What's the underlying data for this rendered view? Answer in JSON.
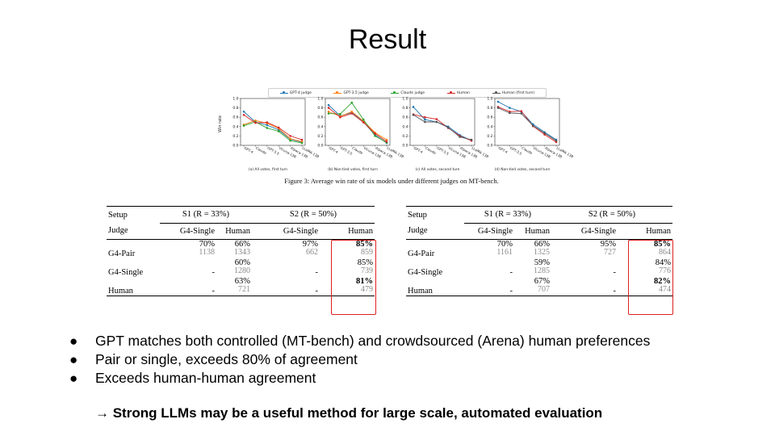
{
  "slide": {
    "title": "Result"
  },
  "figure": {
    "legend": [
      "GPT-4 judge",
      "GPT-3.5 judge",
      "Claude judge",
      "Human",
      "Human (first turn)"
    ],
    "y_axis_label": "Win rate",
    "caption": "Figure 3: Average win rate of six models under different judges on MT-bench.",
    "colors": {
      "gpt4_judge": "#1f77b4",
      "gpt35_judge": "#ff7f0e",
      "claude_judge": "#2ca02c",
      "human": "#d62728",
      "human_first_turn": "#555555"
    }
  },
  "chart_data": [
    {
      "type": "line",
      "caption": "(a) All votes, first turn",
      "categories": [
        "GPT-4",
        "Claude",
        "GPT-3.5",
        "Vicuna-13B",
        "Alpaca-13B",
        "LLaMA-13B"
      ],
      "ylim": [
        0,
        1.0
      ],
      "yticks": [
        "0.0",
        "0.2",
        "0.4",
        "0.6",
        "0.8",
        "1.0"
      ],
      "series": [
        {
          "key": "gpt4_judge",
          "values": [
            0.72,
            0.5,
            0.43,
            0.33,
            0.13,
            0.07
          ]
        },
        {
          "key": "gpt35_judge",
          "values": [
            0.44,
            0.53,
            0.47,
            0.36,
            0.14,
            0.08
          ]
        },
        {
          "key": "claude_judge",
          "values": [
            0.42,
            0.5,
            0.37,
            0.3,
            0.1,
            0.05
          ]
        },
        {
          "key": "human",
          "values": [
            0.65,
            0.48,
            0.49,
            0.38,
            0.2,
            0.12
          ]
        }
      ]
    },
    {
      "type": "line",
      "caption": "(b) Non-tied votes, first turn",
      "categories": [
        "GPT-4",
        "GPT-3.5",
        "Claude",
        "Vicuna-13B",
        "Alpaca-13B",
        "LLaMA-13B"
      ],
      "ylim": [
        0,
        1.0
      ],
      "yticks": [
        "0.0",
        "0.2",
        "0.4",
        "0.6",
        "0.8",
        "1.0"
      ],
      "series": [
        {
          "key": "gpt4_judge",
          "values": [
            0.86,
            0.63,
            0.7,
            0.5,
            0.22,
            0.05
          ]
        },
        {
          "key": "gpt35_judge",
          "values": [
            0.72,
            0.62,
            0.72,
            0.52,
            0.27,
            0.12
          ]
        },
        {
          "key": "claude_judge",
          "values": [
            0.68,
            0.67,
            0.91,
            0.55,
            0.2,
            0.06
          ]
        },
        {
          "key": "human",
          "values": [
            0.8,
            0.6,
            0.68,
            0.49,
            0.25,
            0.08
          ]
        }
      ]
    },
    {
      "type": "line",
      "caption": "(c) All votes, second turn",
      "categories": [
        "GPT-4",
        "Claude",
        "GPT-3.5",
        "Vicuna-13B",
        "Alpaca-13B",
        "LLaMA-13B"
      ],
      "ylim": [
        0,
        1.0
      ],
      "yticks": [
        "0.0",
        "0.2",
        "0.4",
        "0.6",
        "0.8",
        "1.0"
      ],
      "series": [
        {
          "key": "gpt4_judge",
          "values": [
            0.82,
            0.55,
            0.5,
            0.4,
            0.22,
            0.1
          ]
        },
        {
          "key": "human",
          "values": [
            0.66,
            0.6,
            0.56,
            0.37,
            0.2,
            0.1
          ]
        },
        {
          "key": "human_first_turn",
          "values": [
            0.65,
            0.5,
            0.5,
            0.38,
            0.18,
            0.12
          ]
        }
      ]
    },
    {
      "type": "line",
      "caption": "(d) Non-tied votes, second turn",
      "categories": [
        "GPT-4",
        "GPT-3.5",
        "Claude",
        "Vicuna-13B",
        "Alpaca-13B",
        "LLaMA-13B"
      ],
      "ylim": [
        0,
        1.0
      ],
      "yticks": [
        "0.0",
        "0.2",
        "0.4",
        "0.6",
        "0.8",
        "1.0"
      ],
      "series": [
        {
          "key": "gpt4_judge",
          "values": [
            0.93,
            0.8,
            0.72,
            0.45,
            0.28,
            0.12
          ]
        },
        {
          "key": "human",
          "values": [
            0.82,
            0.72,
            0.73,
            0.41,
            0.23,
            0.07
          ]
        },
        {
          "key": "human_first_turn",
          "values": [
            0.8,
            0.69,
            0.68,
            0.42,
            0.26,
            0.1
          ]
        }
      ]
    }
  ],
  "tables": [
    {
      "setup_label": "Setup",
      "s1_label": "S1 (R = 33%)",
      "s2_label": "S2 (R = 50%)",
      "judge_label": "Judge",
      "columns": [
        "G4-Single",
        "Human",
        "G4-Single",
        "Human"
      ],
      "rows": [
        {
          "label": "G4-Pair",
          "cells": [
            [
              "70%",
              "1138"
            ],
            [
              "66%",
              "1343"
            ],
            [
              "97%",
              "662"
            ],
            [
              "85%",
              "859"
            ]
          ]
        },
        {
          "label": "G4-Single",
          "cells": [
            [
              "-",
              ""
            ],
            [
              "60%",
              "1280"
            ],
            [
              "-",
              ""
            ],
            [
              "85%",
              "739"
            ]
          ]
        },
        {
          "label": "Human",
          "cells": [
            [
              "-",
              ""
            ],
            [
              "63%",
              "721"
            ],
            [
              "-",
              ""
            ],
            [
              "81%",
              "479"
            ]
          ]
        }
      ]
    },
    {
      "setup_label": "Setup",
      "s1_label": "S1 (R = 33%)",
      "s2_label": "S2 (R = 50%)",
      "judge_label": "Judge",
      "columns": [
        "G4-Single",
        "Human",
        "G4-Single",
        "Human"
      ],
      "rows": [
        {
          "label": "G4-Pair",
          "cells": [
            [
              "70%",
              "1161"
            ],
            [
              "66%",
              "1325"
            ],
            [
              "95%",
              "727"
            ],
            [
              "85%",
              "864"
            ]
          ]
        },
        {
          "label": "G4-Single",
          "cells": [
            [
              "-",
              ""
            ],
            [
              "59%",
              "1285"
            ],
            [
              "-",
              ""
            ],
            [
              "84%",
              "776"
            ]
          ]
        },
        {
          "label": "Human",
          "cells": [
            [
              "-",
              ""
            ],
            [
              "67%",
              "707"
            ],
            [
              "-",
              ""
            ],
            [
              "82%",
              "474"
            ]
          ]
        }
      ]
    }
  ],
  "bullets": [
    "GPT matches both controlled (MT-bench) and crowdsourced (Arena) human preferences",
    "Pair or single, exceeds 80% of agreement",
    "Exceeds human-human agreement"
  ],
  "bullet_glyph": "●",
  "conclusion": "→ Strong LLMs may be a useful method for large scale, automated evaluation"
}
